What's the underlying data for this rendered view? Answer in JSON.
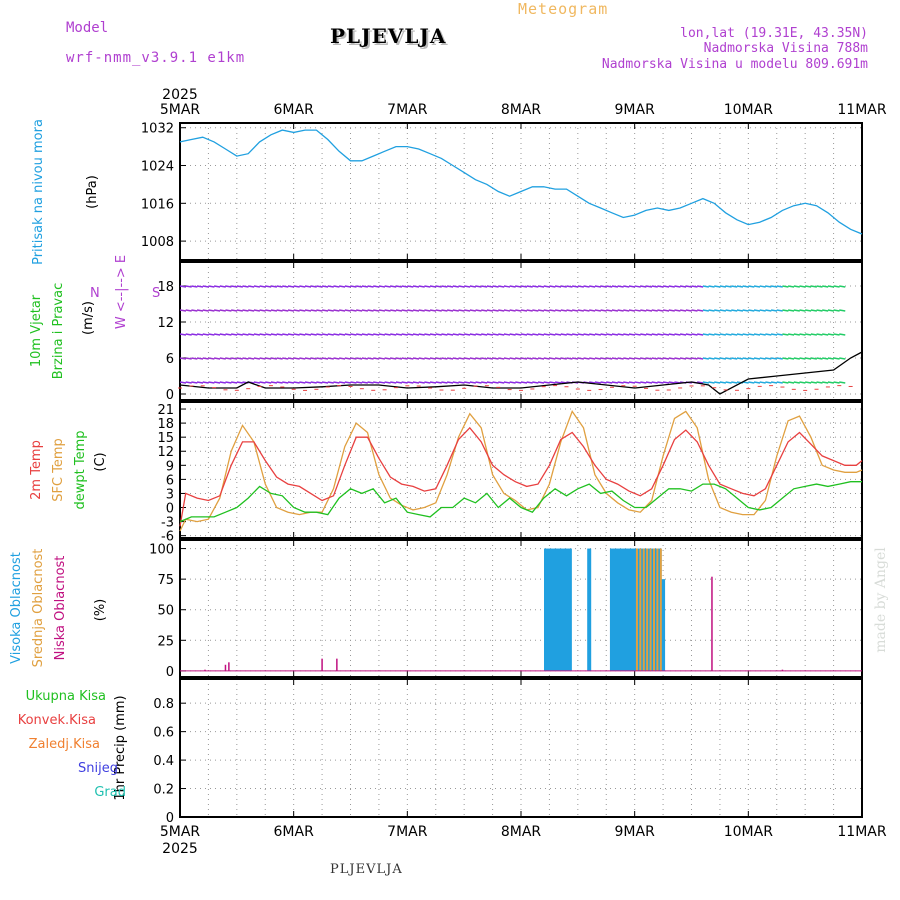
{
  "header": {
    "model_label": "Model",
    "model_run": "wrf-nmm_v3.9.1 e1km",
    "station": "PLJEVLJA",
    "product": "Meteogram",
    "location_line": "lon,lat (19.31E, 43.35N)",
    "elevation_line": "Nadmorska Visina 788m",
    "model_elevation_line": "Nadmorska Visina u modelu 809.691m"
  },
  "footer": {
    "station": "PLJEVLJA"
  },
  "credit": "made by Angel",
  "colors": {
    "pressure": "#20a0e0",
    "wind_title": "#20c020",
    "temp_2m": "#e84040",
    "temp_sfc": "#e0a040",
    "dewpoint": "#20c020",
    "cloud_high": "#20a0e0",
    "cloud_mid": "#e0a040",
    "cloud_low": "#c01080",
    "precip_total": "#20c020",
    "precip_conv": "#e84040",
    "precip_frozen": "#f08030",
    "snow": "#4040e0",
    "hail": "#20c0b0",
    "compass": "#b040d0"
  },
  "chart_data": [
    {
      "type": "line",
      "panel": "pressure",
      "year": "2025",
      "x_ticks": [
        "5MAR",
        "6MAR",
        "7MAR",
        "8MAR",
        "9MAR",
        "10MAR",
        "11MAR"
      ],
      "x_unit": "days from 5MAR 00 UTC",
      "xlim": [
        0,
        6
      ],
      "ylabel_lines": [
        "Pritisak na nivou mora"
      ],
      "yunit": "(hPa)",
      "yticks": [
        1008,
        1016,
        1024,
        1032
      ],
      "ylim": [
        1004,
        1033
      ],
      "series": [
        {
          "name": "Pritisak na nivou mora",
          "x": [
            0,
            0.1,
            0.2,
            0.3,
            0.4,
            0.5,
            0.6,
            0.7,
            0.8,
            0.9,
            1.0,
            1.1,
            1.2,
            1.3,
            1.4,
            1.5,
            1.6,
            1.7,
            1.8,
            1.9,
            2.0,
            2.1,
            2.2,
            2.3,
            2.4,
            2.5,
            2.6,
            2.7,
            2.8,
            2.9,
            3.0,
            3.1,
            3.2,
            3.3,
            3.4,
            3.5,
            3.6,
            3.7,
            3.8,
            3.9,
            4.0,
            4.1,
            4.2,
            4.3,
            4.4,
            4.5,
            4.6,
            4.7,
            4.8,
            4.9,
            5.0,
            5.1,
            5.2,
            5.3,
            5.4,
            5.5,
            5.6,
            5.7,
            5.8,
            5.9,
            6.0
          ],
          "values": [
            1029,
            1029.5,
            1030,
            1029,
            1027.5,
            1026,
            1026.5,
            1029,
            1030.5,
            1031.5,
            1031,
            1031.5,
            1031.5,
            1029.5,
            1027,
            1025,
            1025,
            1026,
            1027,
            1028,
            1028,
            1027.5,
            1026.5,
            1025.5,
            1024,
            1022.5,
            1021,
            1020,
            1018.5,
            1017.5,
            1018.5,
            1019.5,
            1019.5,
            1019,
            1019,
            1017.5,
            1016,
            1015,
            1014,
            1013,
            1013.5,
            1014.5,
            1015,
            1014.5,
            1015,
            1016,
            1017,
            1016,
            1014,
            1012.5,
            1011.5,
            1012,
            1013,
            1014.5,
            1015.5,
            1016,
            1015.5,
            1014,
            1012,
            1010.5,
            1009.5
          ]
        }
      ]
    },
    {
      "type": "line",
      "panel": "wind",
      "ylabel_lines": [
        "10m Vjetar",
        "Brzina i Pravac"
      ],
      "yunit": "(m/s)",
      "compass_label": "W <--|--> E",
      "compass_n": "N",
      "compass_s": "S",
      "yticks": [
        0,
        6,
        12,
        18
      ],
      "ylim": [
        -1,
        22
      ],
      "series": [
        {
          "name": "Brzina",
          "x": [
            0,
            0.25,
            0.5,
            0.6,
            0.75,
            1.0,
            1.25,
            1.5,
            1.75,
            2.0,
            2.25,
            2.5,
            2.75,
            3.0,
            3.25,
            3.5,
            3.75,
            4.0,
            4.25,
            4.5,
            4.65,
            4.75,
            5.0,
            5.25,
            5.5,
            5.75,
            5.9,
            6.0
          ],
          "values": [
            1.5,
            1,
            1,
            2,
            1,
            1,
            1.2,
            1.5,
            1.5,
            1,
            1.2,
            1.5,
            1,
            1,
            1.5,
            2,
            1.5,
            1,
            1.5,
            2,
            1.5,
            0,
            2.5,
            3,
            3.5,
            4,
            6,
            7
          ]
        }
      ]
    },
    {
      "type": "line",
      "panel": "temperature",
      "ylabel_lines": [
        "2m Temp",
        "SFC Temp",
        "dewpt Temp"
      ],
      "yunit": "(C)",
      "yticks": [
        -6,
        -3,
        0,
        3,
        6,
        9,
        12,
        15,
        18,
        21
      ],
      "ylim": [
        -6.5,
        22.5
      ],
      "series": [
        {
          "name": "2m Temp",
          "x": [
            0,
            0.05,
            0.15,
            0.25,
            0.35,
            0.45,
            0.55,
            0.65,
            0.75,
            0.85,
            0.95,
            1.05,
            1.15,
            1.25,
            1.35,
            1.45,
            1.55,
            1.65,
            1.75,
            1.85,
            1.95,
            2.05,
            2.15,
            2.25,
            2.35,
            2.45,
            2.55,
            2.65,
            2.75,
            2.85,
            2.95,
            3.05,
            3.15,
            3.25,
            3.35,
            3.45,
            3.55,
            3.65,
            3.75,
            3.85,
            3.95,
            4.05,
            4.15,
            4.25,
            4.35,
            4.45,
            4.55,
            4.65,
            4.75,
            4.85,
            4.95,
            5.05,
            5.15,
            5.25,
            5.35,
            5.45,
            5.55,
            5.65,
            5.75,
            5.85,
            5.95,
            6.0
          ],
          "values": [
            -4,
            3,
            2,
            1.5,
            2.5,
            9,
            14,
            14,
            10,
            6.5,
            5,
            4.5,
            3,
            1.5,
            2.5,
            9,
            15,
            15,
            10.5,
            6.5,
            5,
            4.5,
            3.5,
            4,
            9,
            14.5,
            17,
            14,
            9,
            7,
            5.5,
            4.5,
            5,
            9,
            14.5,
            16,
            13,
            9,
            6,
            5,
            3.5,
            2.5,
            4,
            9,
            14.5,
            16.5,
            14,
            9,
            5,
            4,
            3,
            2.5,
            4,
            9,
            14,
            16,
            13.5,
            11,
            10,
            9,
            9,
            10
          ]
        },
        {
          "name": "SFC Temp",
          "x": [
            0,
            0.05,
            0.15,
            0.25,
            0.35,
            0.45,
            0.55,
            0.65,
            0.75,
            0.85,
            0.95,
            1.05,
            1.15,
            1.25,
            1.35,
            1.45,
            1.55,
            1.65,
            1.75,
            1.85,
            1.95,
            2.05,
            2.15,
            2.25,
            2.35,
            2.45,
            2.55,
            2.65,
            2.75,
            2.85,
            2.95,
            3.05,
            3.15,
            3.25,
            3.35,
            3.45,
            3.55,
            3.65,
            3.75,
            3.85,
            3.95,
            4.05,
            4.15,
            4.25,
            4.35,
            4.45,
            4.55,
            4.65,
            4.75,
            4.85,
            4.95,
            5.05,
            5.15,
            5.25,
            5.35,
            5.45,
            5.55,
            5.65,
            5.75,
            5.85,
            5.95,
            6.0
          ],
          "values": [
            -5,
            -2.5,
            -3,
            -2.5,
            2,
            12,
            17.5,
            14,
            5,
            0,
            -1,
            -1.5,
            -1,
            -1,
            4,
            13,
            18,
            16,
            7,
            2,
            0.5,
            -0.5,
            0,
            1,
            7,
            15,
            20,
            17,
            7,
            3,
            1.5,
            -0.5,
            0,
            5,
            14,
            20.5,
            17,
            7,
            3,
            1,
            -0.5,
            -1,
            1.5,
            11,
            19,
            20.5,
            17,
            6,
            0,
            -1,
            -1.5,
            -1.5,
            1.5,
            11,
            18.5,
            19.5,
            15,
            9,
            8,
            7.5,
            7.5,
            8
          ]
        },
        {
          "name": "dewpt Temp",
          "x": [
            0,
            0.1,
            0.2,
            0.3,
            0.4,
            0.5,
            0.6,
            0.7,
            0.8,
            0.9,
            1.0,
            1.1,
            1.2,
            1.3,
            1.4,
            1.5,
            1.6,
            1.7,
            1.8,
            1.9,
            2.0,
            2.1,
            2.2,
            2.3,
            2.4,
            2.5,
            2.6,
            2.7,
            2.8,
            2.9,
            3.0,
            3.1,
            3.2,
            3.3,
            3.4,
            3.5,
            3.6,
            3.7,
            3.8,
            3.9,
            4.0,
            4.1,
            4.2,
            4.3,
            4.4,
            4.5,
            4.6,
            4.7,
            4.8,
            4.9,
            5.0,
            5.1,
            5.2,
            5.3,
            5.4,
            5.5,
            5.6,
            5.7,
            5.8,
            5.9,
            6.0
          ],
          "values": [
            -3,
            -2,
            -2,
            -2,
            -1,
            0,
            2,
            4.5,
            3,
            2.5,
            0,
            -1,
            -1,
            -1.5,
            2,
            4,
            3,
            4,
            1,
            2,
            -1,
            -1.5,
            -2,
            0,
            0,
            2,
            1,
            3,
            0,
            2,
            0,
            -1,
            2,
            4,
            2.5,
            4,
            5,
            3,
            3.5,
            1.5,
            0,
            0,
            2,
            4,
            4,
            3.5,
            5,
            5,
            4,
            2,
            0,
            -0.5,
            0,
            2,
            4,
            4.5,
            5,
            4.5,
            5,
            5.5,
            5.5
          ]
        }
      ]
    },
    {
      "type": "bar",
      "panel": "clouds",
      "ylabel_lines": [
        "Visoka Oblacnost",
        "Srednja Oblacnost",
        "Niska Oblacnost"
      ],
      "yunit": "(%)",
      "yticks": [
        0,
        25,
        50,
        75,
        100
      ],
      "ylim": [
        -5,
        107
      ],
      "series": [
        {
          "name": "Visoka Oblacnost",
          "x": [
            3.22,
            3.25,
            3.28,
            3.31,
            3.34,
            3.37,
            3.4,
            3.43,
            3.6,
            3.8,
            3.83,
            3.86,
            3.89,
            3.92,
            3.95,
            3.98,
            4.01,
            4.04,
            4.07,
            4.1,
            4.13,
            4.16,
            4.19,
            4.22,
            4.25
          ],
          "values": [
            100,
            100,
            100,
            100,
            100,
            100,
            100,
            100,
            100,
            100,
            100,
            100,
            100,
            100,
            100,
            100,
            100,
            100,
            100,
            100,
            100,
            100,
            100,
            100,
            75
          ]
        },
        {
          "name": "Srednja Oblacnost",
          "x": [
            4.02,
            4.05,
            4.08,
            4.11,
            4.14,
            4.17,
            4.2,
            4.23
          ],
          "values": [
            100,
            100,
            100,
            100,
            100,
            100,
            100,
            100
          ]
        },
        {
          "name": "Niska Oblacnost",
          "x": [
            0.22,
            0.4,
            0.43,
            1.25,
            1.38,
            4.68,
            5.3
          ],
          "values": [
            1,
            5,
            7,
            10,
            10,
            77,
            1
          ]
        }
      ]
    },
    {
      "type": "bar",
      "panel": "precipitation",
      "ylabel_lines": [
        "1hr Precip",
        "(mm)"
      ],
      "yticks": [
        0,
        0.2,
        0.4,
        0.6,
        0.8
      ],
      "ylim": [
        0,
        0.97
      ],
      "legend": [
        "Ukupna Kisa",
        "Konvek.Kisa",
        "Zaledj.Kisa",
        "Snijeg",
        "Grad"
      ],
      "series": []
    }
  ]
}
